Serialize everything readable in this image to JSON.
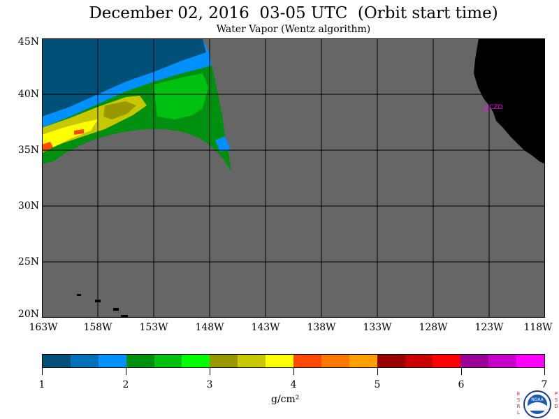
{
  "title": "December 02, 2016  03-05 UTC  (Orbit start time)",
  "subtitle": "Water Vapor (Wentz algorithm)",
  "map": {
    "lat_labels": [
      "45N",
      "40N",
      "35N",
      "30N",
      "25N",
      "20N"
    ],
    "lon_labels": [
      "163W",
      "158W",
      "153W",
      "148W",
      "143W",
      "138W",
      "133W",
      "128W",
      "123W",
      "118W"
    ],
    "station_label": "CZD",
    "no_data_color": "#666666",
    "land_color": "#000000",
    "grid_color": "#000000",
    "station_color": "#ff00ff"
  },
  "colorbar": {
    "colors": [
      "#005078",
      "#0070b8",
      "#0090ff",
      "#009010",
      "#00c010",
      "#00ff00",
      "#989800",
      "#c8c800",
      "#ffff00",
      "#ff4800",
      "#ff7800",
      "#ffa000",
      "#980000",
      "#c80000",
      "#ff0000",
      "#980098",
      "#c800c8",
      "#ff00ff"
    ],
    "tick_labels": [
      "1",
      "2",
      "3",
      "4",
      "5",
      "6",
      "7"
    ],
    "units": "g/cm²"
  },
  "logo": {
    "left_letters": "ESRL",
    "right_letters": "PSD",
    "center_text": "NOAA"
  }
}
